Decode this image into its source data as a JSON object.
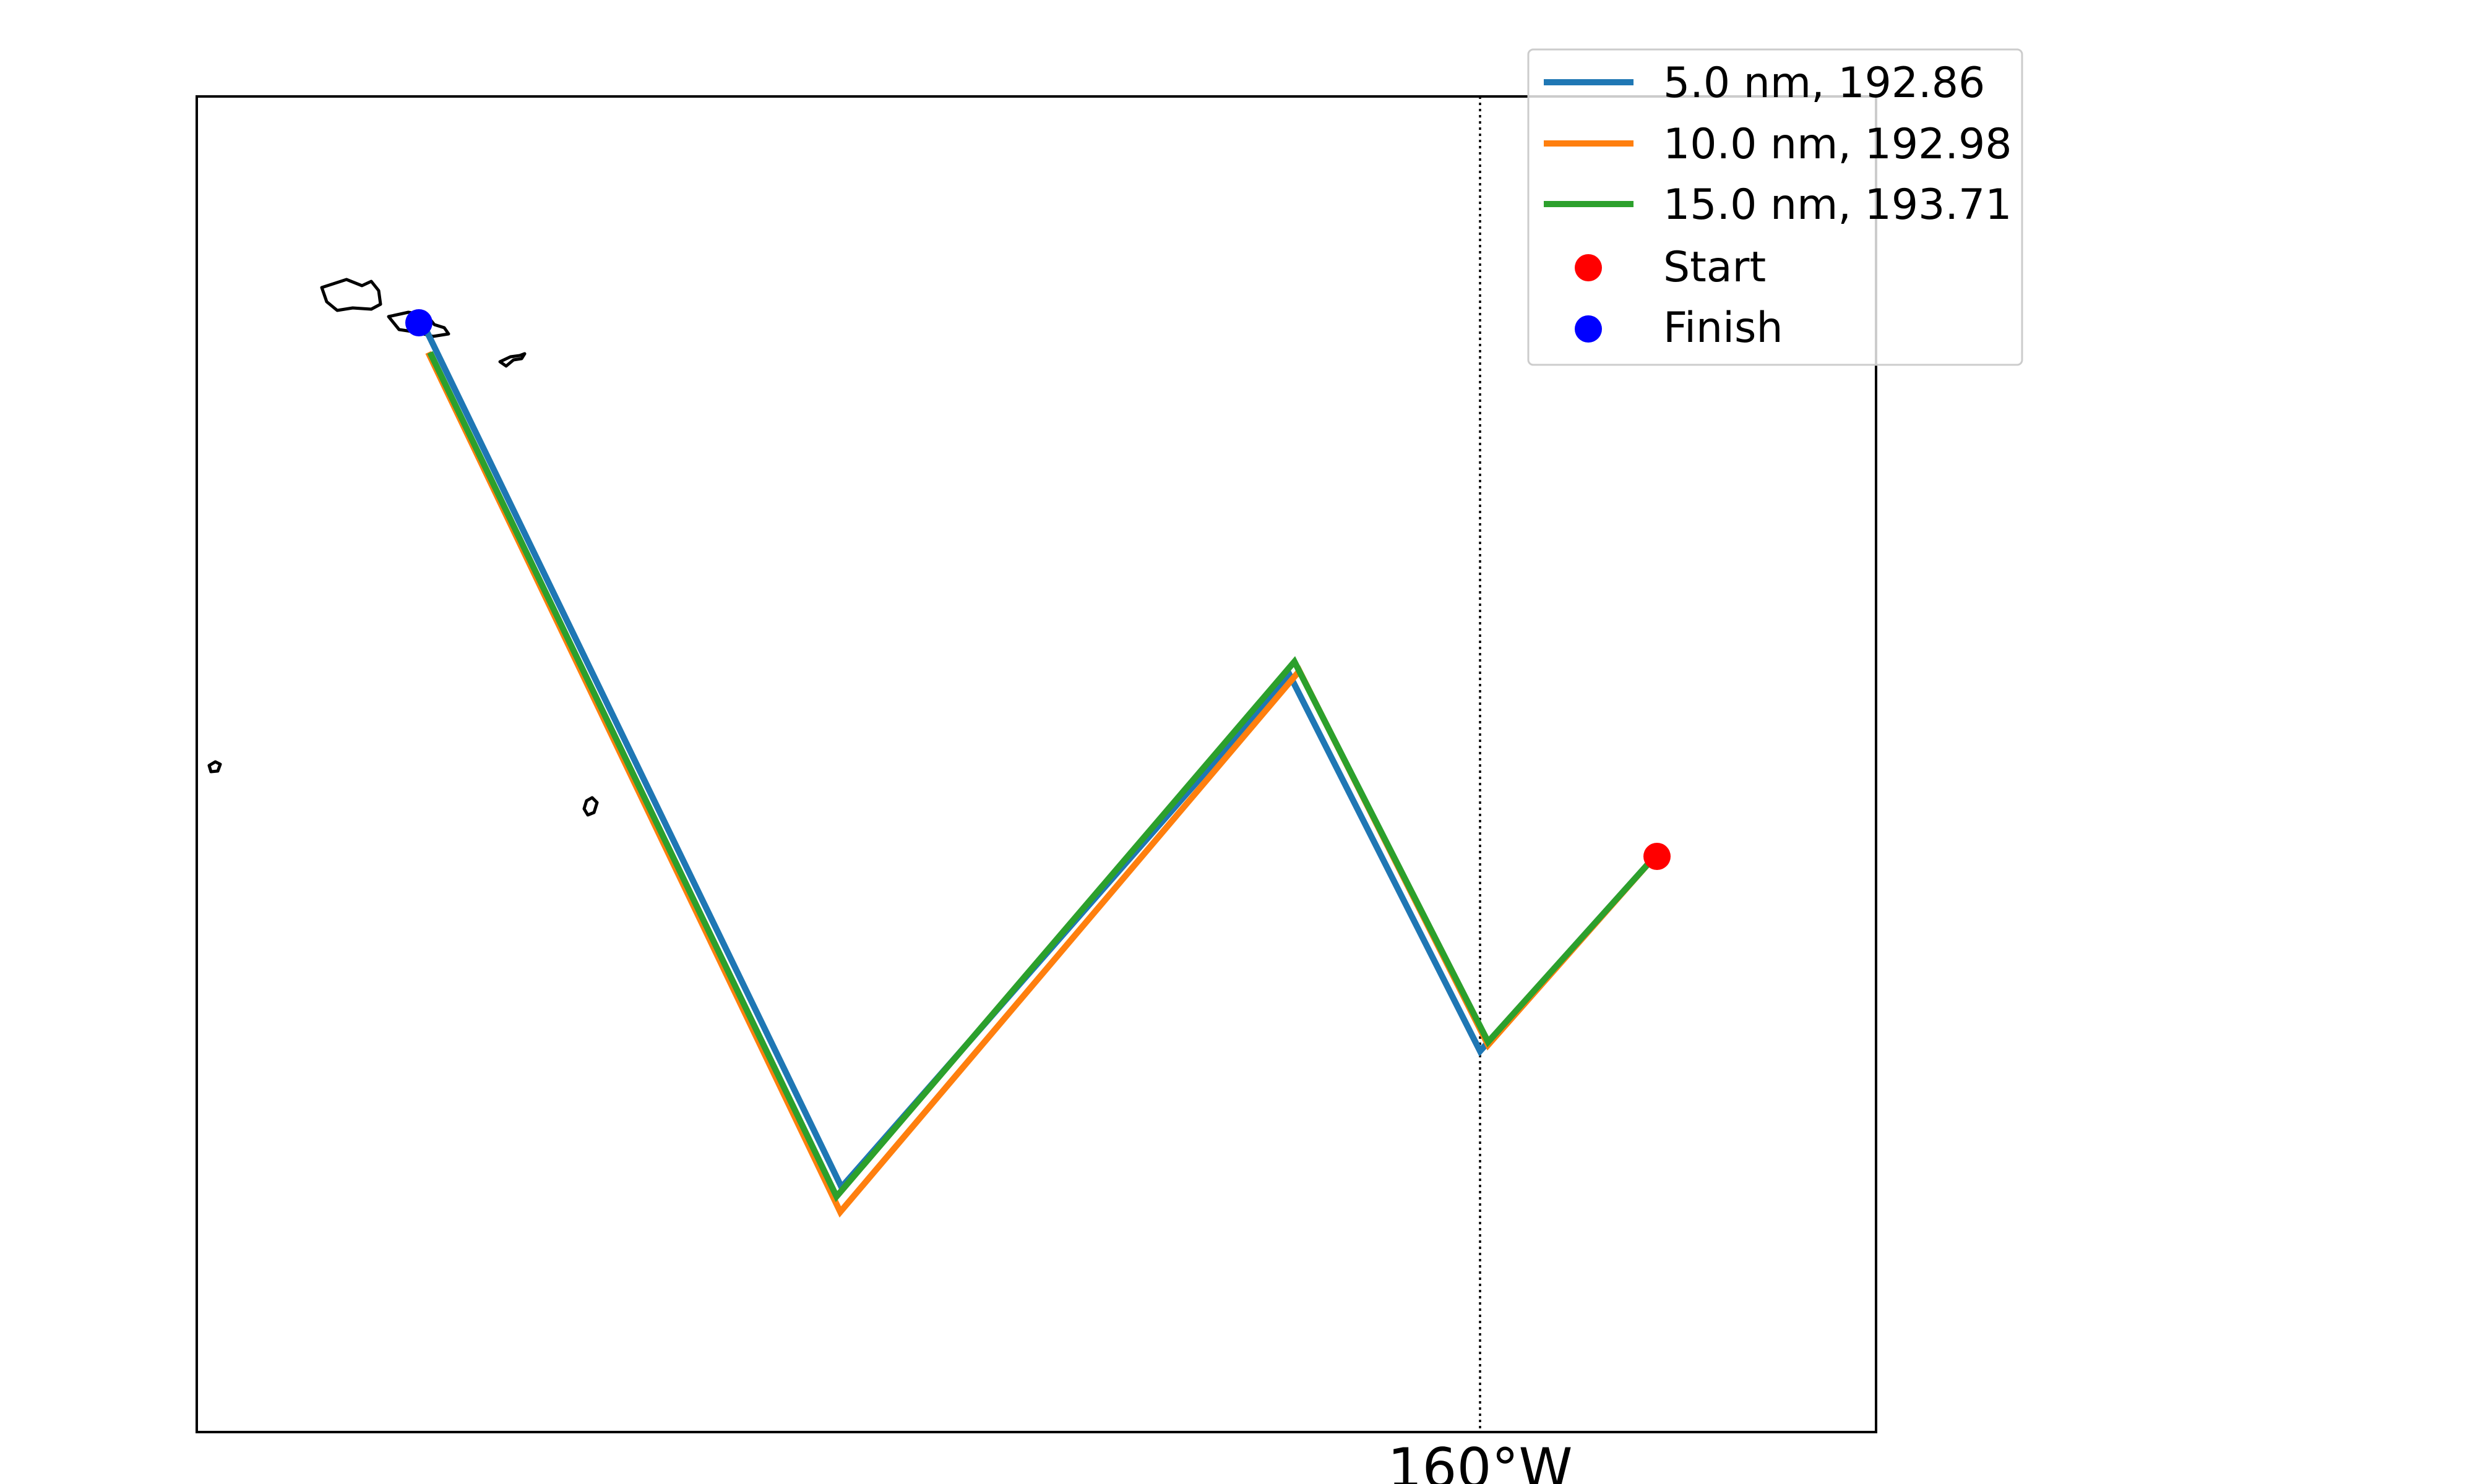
{
  "map": {
    "meridian_label": "160°W",
    "coastline_color": "#000000",
    "gridline_style": "dotted"
  },
  "legend": {
    "placement": "top-right",
    "entries": [
      {
        "label": "5.0 nm, 192.86",
        "marker": "line",
        "color": "#1f77b4"
      },
      {
        "label": "10.0 nm, 192.98",
        "marker": "line",
        "color": "#ff7f0e"
      },
      {
        "label": "15.0 nm, 193.71",
        "marker": "line",
        "color": "#2ca02c"
      },
      {
        "label": "Start",
        "marker": "dot",
        "color": "#ff0000"
      },
      {
        "label": "Finish",
        "marker": "dot",
        "color": "#0000ff"
      }
    ]
  },
  "points": {
    "start_color": "#ff0000",
    "finish_color": "#0000ff"
  }
}
